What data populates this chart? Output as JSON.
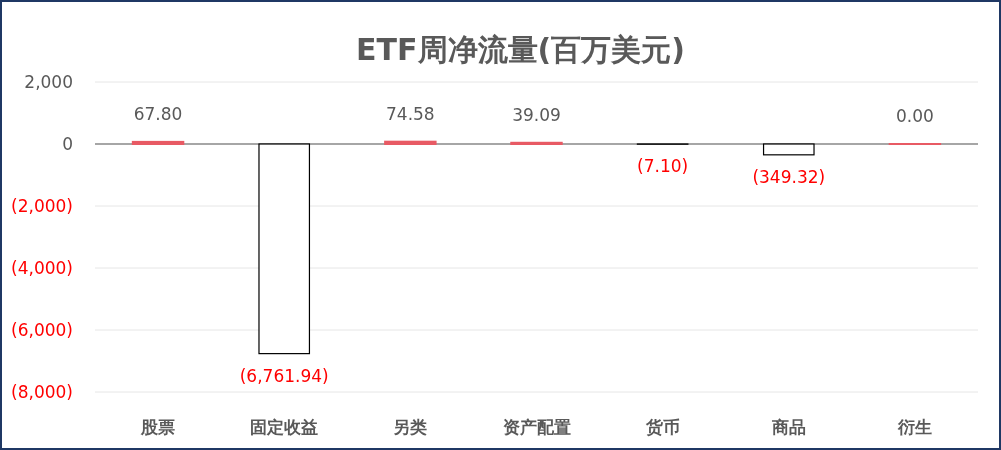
{
  "chart_data": {
    "type": "bar",
    "title": "ETF周净流量(百万美元)",
    "categories": [
      "股票",
      "固定收益",
      "另类",
      "资产配置",
      "货币",
      "商品",
      "衍生"
    ],
    "values": [
      67.8,
      -6761.94,
      74.58,
      39.09,
      -7.1,
      -349.32,
      0.0
    ],
    "colors": [
      "#e85a64",
      "#ffffff",
      "#e85a64",
      "#e85a64",
      "#ffffff",
      "#ffffff",
      "#e85a64"
    ],
    "value_labels": [
      "67.80",
      "(6,761.94)",
      "74.58",
      "39.09",
      "(7.10)",
      "(349.32)",
      "0.00"
    ],
    "ylim": [
      -8000,
      2000
    ],
    "yticks": [
      {
        "value": 2000,
        "label": "2,000"
      },
      0,
      {
        "value": -2000,
        "label": "(2,000)"
      },
      {
        "value": -4000,
        "label": "(4,000)"
      },
      {
        "value": -6000,
        "label": "(6,000)"
      },
      {
        "value": -8000,
        "label": "(8,000)"
      }
    ],
    "grid": "y"
  }
}
